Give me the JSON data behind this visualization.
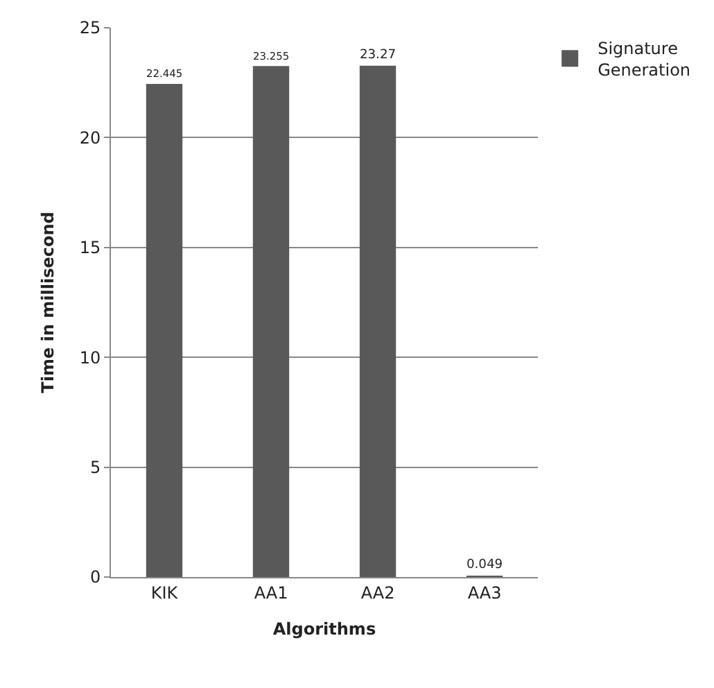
{
  "chart_data": {
    "type": "bar",
    "xlabel": "Algorithms",
    "ylabel": "Time in millisecond",
    "categories": [
      "KIK",
      "AA1",
      "AA2",
      "AA3"
    ],
    "series": [
      {
        "name": "Signature Generation",
        "color": "#595959",
        "values": [
          22.445,
          23.255,
          23.27,
          0.049
        ]
      }
    ],
    "ylim": [
      0,
      25
    ],
    "yticks": [
      0,
      5,
      10,
      15,
      20,
      25
    ],
    "grid": "y",
    "legend": "top right",
    "data_labels": true
  }
}
